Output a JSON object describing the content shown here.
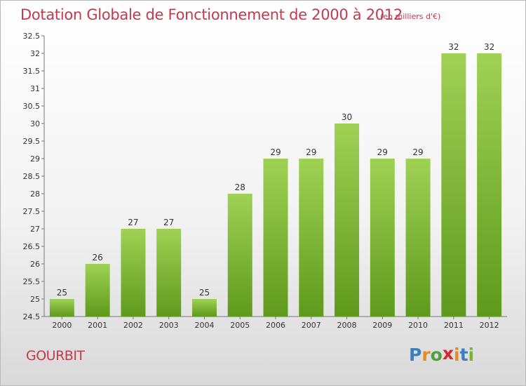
{
  "header": {
    "title": "Dotation Globale de Fonctionnement de 2000 à 2012",
    "subtitle": "(en milliers d'€)"
  },
  "commune": "GOURBIT",
  "logo": {
    "letters": [
      "P",
      "r",
      "o",
      "x",
      "i",
      "t",
      "i"
    ],
    "colors": [
      "#3a7fc0",
      "#e98a1a",
      "#4aa43c",
      "#d8262a",
      "#e98a1a",
      "#3a7fc0",
      "#7ab530"
    ]
  },
  "chart_data": {
    "type": "bar",
    "categories": [
      "2000",
      "2001",
      "2002",
      "2003",
      "2004",
      "2005",
      "2006",
      "2007",
      "2008",
      "2009",
      "2010",
      "2011",
      "2012"
    ],
    "values": [
      25,
      26,
      27,
      27,
      25,
      28,
      29,
      29,
      30,
      29,
      29,
      32,
      32
    ],
    "ylim": [
      24.5,
      32.5
    ],
    "yticks": [
      "24.5",
      "25",
      "25.5",
      "26",
      "26.5",
      "27",
      "27.5",
      "28",
      "28.5",
      "29",
      "29.5",
      "30",
      "30.5",
      "31",
      "31.5",
      "32",
      "32.5"
    ],
    "grid": false,
    "bar_color_top": "#9fd155",
    "bar_color_bottom": "#5f9a1c"
  }
}
